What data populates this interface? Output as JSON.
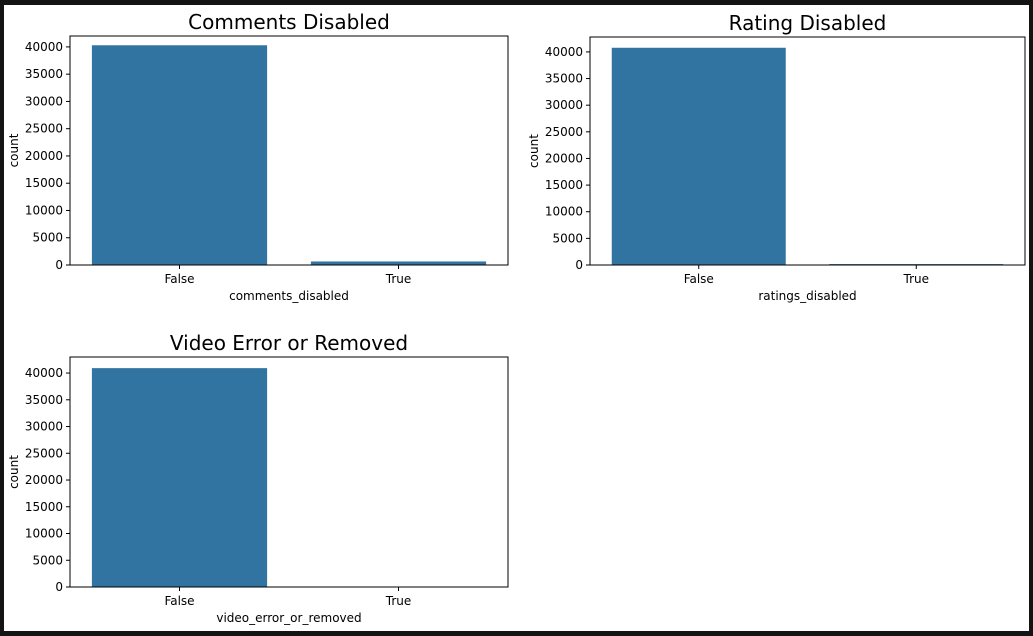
{
  "chart_data": [
    {
      "type": "bar",
      "title": "Comments Disabled",
      "xlabel": "comments_disabled",
      "ylabel": "count",
      "categories": [
        "False",
        "True"
      ],
      "values": [
        40300,
        650
      ],
      "ylim": [
        0,
        42000
      ],
      "yticks": [
        0,
        5000,
        10000,
        15000,
        20000,
        25000,
        30000,
        35000,
        40000
      ],
      "color": "#3274a1",
      "grid": false,
      "legend": "none"
    },
    {
      "type": "bar",
      "title": "Rating Disabled",
      "xlabel": "ratings_disabled",
      "ylabel": "count",
      "categories": [
        "False",
        "True"
      ],
      "values": [
        40780,
        170
      ],
      "ylim": [
        0,
        42800
      ],
      "yticks": [
        0,
        5000,
        10000,
        15000,
        20000,
        25000,
        30000,
        35000,
        40000
      ],
      "color": "#3274a1",
      "grid": false,
      "legend": "none"
    },
    {
      "type": "bar",
      "title": "Video Error or Removed",
      "xlabel": "video_error_or_removed",
      "ylabel": "count",
      "categories": [
        "False",
        "True"
      ],
      "values": [
        40920,
        23
      ],
      "ylim": [
        0,
        43000
      ],
      "yticks": [
        0,
        5000,
        10000,
        15000,
        20000,
        25000,
        30000,
        35000,
        40000
      ],
      "color": "#3274a1",
      "grid": false,
      "legend": "none"
    }
  ]
}
